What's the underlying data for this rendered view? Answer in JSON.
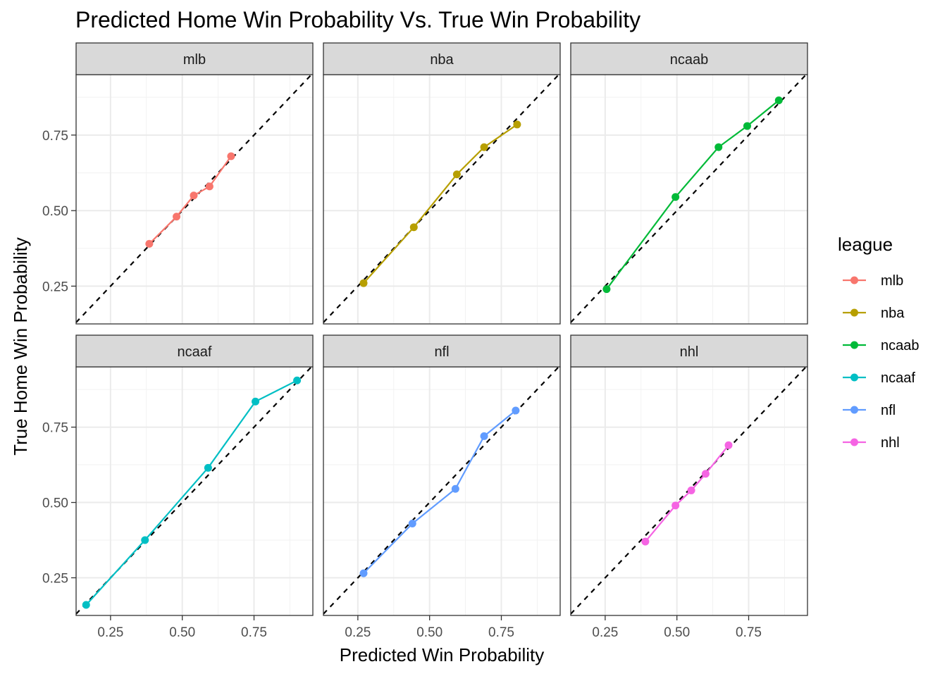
{
  "chart_data": {
    "type": "line",
    "title": "Predicted Home Win Probability Vs. True Win Probability",
    "xlabel": "Predicted Win Probability",
    "ylabel": "True Home Win Probability",
    "xlim": [
      0.13,
      0.955
    ],
    "ylim": [
      0.125,
      0.95
    ],
    "xticks": [
      "0.25",
      "0.50",
      "0.75"
    ],
    "yticks": [
      "0.25",
      "0.50",
      "0.75"
    ],
    "x_tick_values": [
      0.25,
      0.5,
      0.75
    ],
    "y_tick_values": [
      0.25,
      0.5,
      0.75
    ],
    "reference_line": "dashed y = x",
    "grid": true,
    "legend": {
      "title": "league",
      "position": "right"
    },
    "series": [
      {
        "name": "mlb",
        "color": "#F8766D",
        "x": [
          0.385,
          0.48,
          0.54,
          0.595,
          0.67
        ],
        "y": [
          0.39,
          0.48,
          0.55,
          0.58,
          0.68
        ]
      },
      {
        "name": "nba",
        "color": "#B79F00",
        "x": [
          0.27,
          0.445,
          0.595,
          0.69,
          0.805
        ],
        "y": [
          0.26,
          0.445,
          0.62,
          0.71,
          0.785
        ]
      },
      {
        "name": "ncaab",
        "color": "#00BA38",
        "x": [
          0.255,
          0.495,
          0.645,
          0.745,
          0.855
        ],
        "y": [
          0.24,
          0.545,
          0.71,
          0.78,
          0.865
        ]
      },
      {
        "name": "ncaaf",
        "color": "#00BFC4",
        "x": [
          0.165,
          0.37,
          0.59,
          0.755,
          0.9
        ],
        "y": [
          0.16,
          0.375,
          0.615,
          0.835,
          0.905
        ]
      },
      {
        "name": "nfl",
        "color": "#619CFF",
        "x": [
          0.27,
          0.44,
          0.59,
          0.69,
          0.8
        ],
        "y": [
          0.265,
          0.43,
          0.545,
          0.72,
          0.805
        ]
      },
      {
        "name": "nhl",
        "color": "#F564E3",
        "x": [
          0.39,
          0.495,
          0.55,
          0.6,
          0.68
        ],
        "y": [
          0.37,
          0.49,
          0.54,
          0.595,
          0.69
        ]
      }
    ]
  }
}
